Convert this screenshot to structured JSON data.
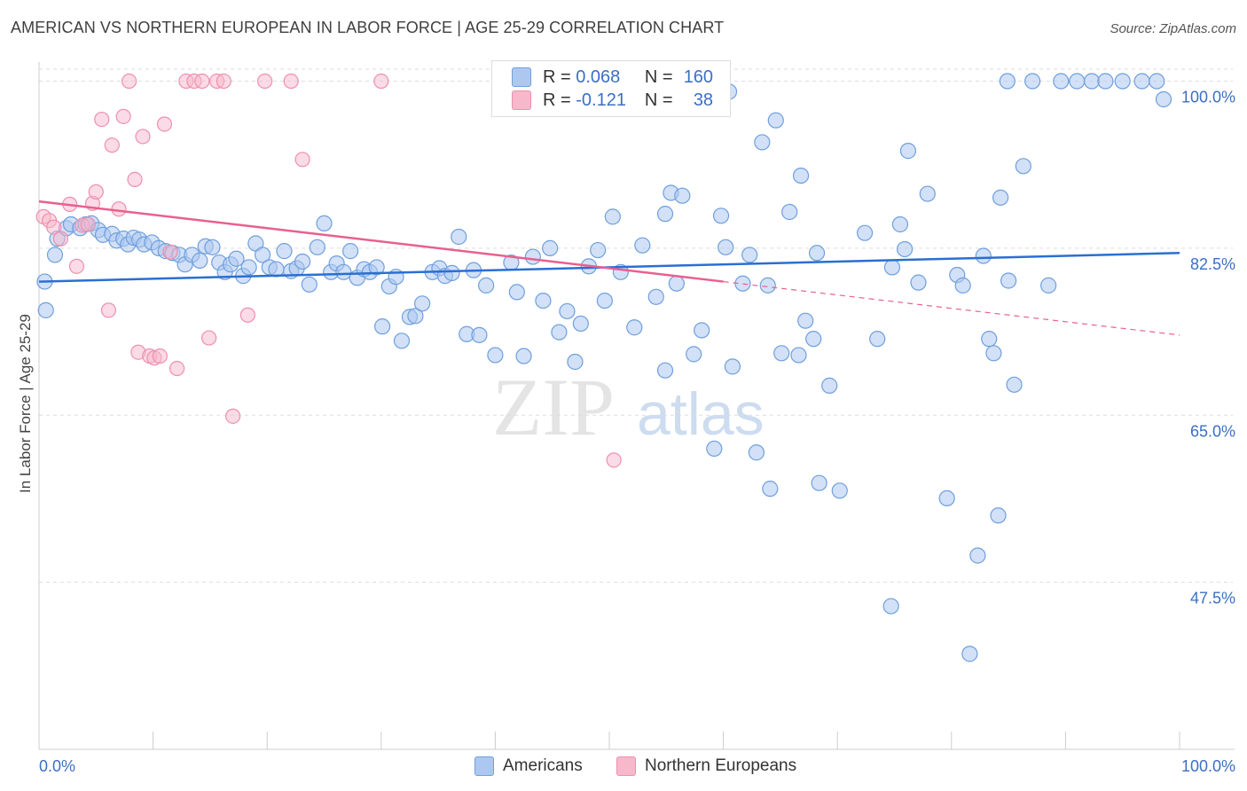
{
  "title": "AMERICAN VS NORTHERN EUROPEAN IN LABOR FORCE | AGE 25-29 CORRELATION CHART",
  "source": "Source: ZipAtlas.com",
  "watermark": {
    "zip": "ZIP",
    "atlas": "atlas"
  },
  "colors": {
    "blue_fill": "#adc8f0",
    "blue_stroke": "#6f9fdd",
    "blue_line": "#2a6fd2",
    "pink_fill": "#f7b8cb",
    "pink_stroke": "#ee8fae",
    "pink_line": "#e8608d",
    "axis_text": "#3b6fc4",
    "grid": "#dddddd"
  },
  "legend": {
    "rows": [
      {
        "r_label": "R =",
        "r_value": "0.068",
        "n_label": "N =",
        "n_value": "160",
        "series": "americans"
      },
      {
        "r_label": "R =",
        "r_value": "-0.121",
        "n_label": "N =",
        "n_value": "38",
        "series": "northern_europeans"
      }
    ]
  },
  "bottom_legend": {
    "americans": "Americans",
    "northern_europeans": "Northern Europeans"
  },
  "chart_data": {
    "type": "scatter",
    "title": "AMERICAN VS NORTHERN EUROPEAN IN LABOR FORCE | AGE 25-29 CORRELATION CHART",
    "xlabel": "",
    "ylabel": "In Labor Force | Age 25-29",
    "xlim": [
      0,
      100
    ],
    "ylim": [
      30,
      102
    ],
    "x_tick_labels": [
      "0.0%",
      "100.0%"
    ],
    "y_ticks": [
      47.5,
      65.0,
      82.5,
      100.0
    ],
    "y_tick_labels": [
      "47.5%",
      "65.0%",
      "82.5%",
      "100.0%"
    ],
    "grid": true,
    "legend_position": "top-center",
    "series": [
      {
        "name": "Americans",
        "key": "americans",
        "trend": {
          "x": [
            0,
            100
          ],
          "y": [
            79.0,
            82.0
          ]
        },
        "points": [
          [
            0.5,
            79
          ],
          [
            0.6,
            76
          ],
          [
            1.4,
            81.8
          ],
          [
            1.6,
            83.5
          ],
          [
            2.4,
            84.6
          ],
          [
            2.8,
            85.0
          ],
          [
            3.6,
            84.6
          ],
          [
            4.1,
            85.0
          ],
          [
            4.6,
            85.1
          ],
          [
            5.2,
            84.4
          ],
          [
            5.6,
            83.9
          ],
          [
            6.4,
            84.0
          ],
          [
            6.8,
            83.3
          ],
          [
            7.4,
            83.5
          ],
          [
            7.8,
            82.9
          ],
          [
            8.3,
            83.6
          ],
          [
            8.8,
            83.4
          ],
          [
            9.2,
            82.9
          ],
          [
            9.9,
            83.1
          ],
          [
            10.5,
            82.5
          ],
          [
            11.1,
            82.2
          ],
          [
            11.7,
            82.0
          ],
          [
            12.3,
            81.8
          ],
          [
            12.8,
            80.8
          ],
          [
            13.4,
            81.8
          ],
          [
            14.1,
            81.2
          ],
          [
            14.6,
            82.7
          ],
          [
            15.2,
            82.6
          ],
          [
            15.8,
            81.0
          ],
          [
            16.3,
            80.0
          ],
          [
            16.8,
            80.8
          ],
          [
            17.3,
            81.4
          ],
          [
            17.9,
            79.6
          ],
          [
            18.4,
            80.5
          ],
          [
            19.0,
            83.0
          ],
          [
            19.6,
            81.8
          ],
          [
            20.2,
            80.5
          ],
          [
            20.8,
            80.3
          ],
          [
            21.5,
            82.2
          ],
          [
            22.1,
            80.1
          ],
          [
            22.6,
            80.4
          ],
          [
            23.1,
            81.1
          ],
          [
            23.7,
            78.7
          ],
          [
            24.4,
            82.6
          ],
          [
            25.0,
            85.1
          ],
          [
            25.6,
            80.0
          ],
          [
            26.1,
            80.9
          ],
          [
            26.7,
            80.0
          ],
          [
            27.3,
            82.2
          ],
          [
            27.9,
            79.4
          ],
          [
            28.5,
            80.3
          ],
          [
            29.0,
            80.0
          ],
          [
            29.6,
            80.5
          ],
          [
            30.1,
            74.3
          ],
          [
            30.7,
            78.5
          ],
          [
            31.3,
            79.5
          ],
          [
            31.8,
            72.8
          ],
          [
            32.5,
            75.3
          ],
          [
            33.0,
            75.4
          ],
          [
            33.6,
            76.7
          ],
          [
            34.5,
            80.0
          ],
          [
            35.1,
            80.4
          ],
          [
            35.6,
            79.6
          ],
          [
            36.2,
            79.9
          ],
          [
            36.8,
            83.7
          ],
          [
            37.5,
            73.5
          ],
          [
            38.1,
            80.2
          ],
          [
            38.6,
            73.4
          ],
          [
            39.2,
            78.6
          ],
          [
            40.0,
            71.3
          ],
          [
            41.4,
            81.0
          ],
          [
            41.9,
            77.9
          ],
          [
            42.5,
            71.2
          ],
          [
            43.3,
            81.6
          ],
          [
            44.2,
            77.0
          ],
          [
            44.8,
            82.5
          ],
          [
            45.6,
            73.7
          ],
          [
            46.3,
            75.9
          ],
          [
            47.0,
            70.6
          ],
          [
            47.5,
            74.6
          ],
          [
            48.2,
            80.6
          ],
          [
            49.0,
            82.3
          ],
          [
            49.6,
            77.0
          ],
          [
            50.3,
            85.8
          ],
          [
            51.0,
            80.0
          ],
          [
            52.2,
            74.2
          ],
          [
            52.9,
            82.8
          ],
          [
            54.1,
            77.4
          ],
          [
            54.9,
            69.7
          ],
          [
            55.4,
            88.3
          ],
          [
            55.9,
            78.8
          ],
          [
            56.4,
            88.0
          ],
          [
            57.4,
            71.4
          ],
          [
            58.1,
            73.9
          ],
          [
            59.2,
            61.5
          ],
          [
            59.8,
            85.9
          ],
          [
            60.2,
            82.6
          ],
          [
            60.8,
            70.1
          ],
          [
            61.7,
            78.8
          ],
          [
            62.3,
            81.8
          ],
          [
            62.9,
            61.1
          ],
          [
            63.4,
            93.6
          ],
          [
            63.9,
            78.6
          ],
          [
            64.1,
            57.3
          ],
          [
            64.6,
            95.9
          ],
          [
            65.1,
            71.5
          ],
          [
            65.8,
            86.3
          ],
          [
            66.6,
            71.3
          ],
          [
            67.2,
            74.9
          ],
          [
            67.9,
            73.0
          ],
          [
            68.4,
            57.9
          ],
          [
            69.3,
            68.1
          ],
          [
            70.2,
            57.1
          ],
          [
            72.4,
            84.1
          ],
          [
            73.5,
            73.0
          ],
          [
            74.7,
            45.0
          ],
          [
            75.5,
            85.0
          ],
          [
            76.2,
            92.7
          ],
          [
            77.1,
            78.9
          ],
          [
            77.9,
            88.2
          ],
          [
            79.6,
            56.3
          ],
          [
            80.5,
            79.7
          ],
          [
            81.0,
            78.6
          ],
          [
            81.6,
            40.0
          ],
          [
            82.3,
            50.3
          ],
          [
            82.8,
            81.7
          ],
          [
            83.3,
            73.0
          ],
          [
            84.1,
            54.5
          ],
          [
            85.0,
            79.1
          ],
          [
            85.5,
            68.2
          ],
          [
            86.3,
            91.1
          ],
          [
            87.1,
            100.0
          ],
          [
            88.5,
            78.6
          ],
          [
            89.6,
            100.0
          ],
          [
            91.0,
            100.0
          ],
          [
            92.3,
            100.0
          ],
          [
            93.5,
            100.0
          ],
          [
            95.0,
            100.0
          ],
          [
            96.7,
            100.0
          ],
          [
            98.0,
            100.0
          ],
          [
            98.6,
            98.1
          ],
          [
            84.9,
            100.0
          ],
          [
            84.3,
            87.8
          ],
          [
            66.8,
            90.1
          ],
          [
            74.8,
            80.5
          ],
          [
            60.5,
            98.9
          ],
          [
            54.9,
            86.1
          ],
          [
            75.9,
            82.4
          ],
          [
            68.2,
            82.0
          ],
          [
            83.7,
            71.5
          ]
        ]
      },
      {
        "name": "Northern Europeans",
        "key": "northern_europeans",
        "trend": {
          "x": [
            0,
            60
          ],
          "y": [
            87.4,
            79.0
          ]
        },
        "trend_dashed": {
          "x": [
            60,
            100
          ],
          "y": [
            79.0,
            73.4
          ]
        },
        "points": [
          [
            0.4,
            85.8
          ],
          [
            0.9,
            85.4
          ],
          [
            1.3,
            84.7
          ],
          [
            1.9,
            83.5
          ],
          [
            2.7,
            87.1
          ],
          [
            3.3,
            80.6
          ],
          [
            3.8,
            84.9
          ],
          [
            4.3,
            85.0
          ],
          [
            4.7,
            87.2
          ],
          [
            5.0,
            88.4
          ],
          [
            5.5,
            96.0
          ],
          [
            6.1,
            76.0
          ],
          [
            6.4,
            93.3
          ],
          [
            7.0,
            86.6
          ],
          [
            7.4,
            96.3
          ],
          [
            7.9,
            100.0
          ],
          [
            8.4,
            89.7
          ],
          [
            8.7,
            71.6
          ],
          [
            9.1,
            94.2
          ],
          [
            9.7,
            71.2
          ],
          [
            10.1,
            71.0
          ],
          [
            10.6,
            71.2
          ],
          [
            11.0,
            95.5
          ],
          [
            11.5,
            82.1
          ],
          [
            12.1,
            69.9
          ],
          [
            12.9,
            100.0
          ],
          [
            13.6,
            100.0
          ],
          [
            14.3,
            100.0
          ],
          [
            14.9,
            73.1
          ],
          [
            15.6,
            100.0
          ],
          [
            16.2,
            100.0
          ],
          [
            17.0,
            64.9
          ],
          [
            18.3,
            75.5
          ],
          [
            19.8,
            100.0
          ],
          [
            22.1,
            100.0
          ],
          [
            23.1,
            91.8
          ],
          [
            30.0,
            100.0
          ],
          [
            50.4,
            60.3
          ]
        ]
      }
    ]
  }
}
